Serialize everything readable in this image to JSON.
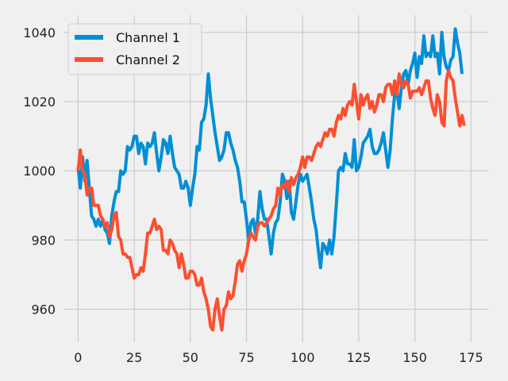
{
  "chart_data": {
    "type": "line",
    "title": "",
    "xlabel": "",
    "ylabel": "",
    "xlim": [
      -6.5,
      183
    ],
    "ylim": [
      950.5,
      1045
    ],
    "xticks": [
      0,
      25,
      50,
      75,
      100,
      125,
      150,
      175
    ],
    "yticks": [
      960,
      980,
      1000,
      1020,
      1040
    ],
    "grid": true,
    "legend": "top-left",
    "series": [
      {
        "name": "Channel 1",
        "color": "#008fd5",
        "x_start": 0,
        "y": [
          1001,
          995,
          1004,
          997,
          1003,
          995,
          987,
          986,
          984,
          986,
          984,
          986,
          983,
          982,
          979,
          987,
          991,
          994,
          994,
          1000,
          999,
          1000,
          1007,
          1006,
          1007,
          1010,
          1010,
          1005,
          1008,
          1007,
          1002,
          1008,
          1007,
          1008,
          1011,
          1005,
          1000,
          1004,
          1009,
          1008,
          1005,
          1010,
          1005,
          1001,
          1000,
          999,
          995,
          995,
          997,
          995,
          990,
          995,
          999,
          1007,
          1006,
          1014,
          1015,
          1019,
          1028,
          1021,
          1016,
          1011,
          1007,
          1003,
          1004,
          1006,
          1011,
          1011,
          1008,
          1006,
          1003,
          1001,
          997,
          991,
          991,
          986,
          980,
          985,
          986,
          982,
          986,
          994,
          989,
          986,
          986,
          981,
          976,
          982,
          985,
          986,
          991,
          999,
          997,
          992,
          997,
          988,
          986,
          991,
          996,
          999,
          997,
          998,
          999,
          995,
          991,
          986,
          983,
          977,
          972,
          979,
          978,
          976,
          980,
          976,
          981,
          990,
          1000,
          1001,
          1000,
          1005,
          1002,
          1002,
          1001,
          1009,
          1000,
          1001,
          1004,
          1008,
          1009,
          1010,
          1012,
          1007,
          1005,
          1005,
          1006,
          1008,
          1011,
          1006,
          1001,
          1006,
          1015,
          1022,
          1023,
          1018,
          1024,
          1028,
          1029,
          1025,
          1029,
          1031,
          1034,
          1027,
          1033,
          1031,
          1039,
          1033,
          1034,
          1033,
          1039,
          1033,
          1034,
          1028,
          1040,
          1033,
          1030,
          1029,
          1032,
          1033,
          1041,
          1037,
          1034,
          1028
        ]
      },
      {
        "name": "Channel 2",
        "color": "#fc4f30",
        "x_start": 0,
        "y": [
          1000,
          1006,
          1000,
          999,
          993,
          995,
          995,
          990,
          990,
          990,
          987,
          986,
          984,
          985,
          981,
          983,
          987,
          988,
          981,
          980,
          976,
          976,
          975,
          975,
          972,
          969,
          970,
          970,
          972,
          971,
          976,
          982,
          982,
          984,
          986,
          983,
          984,
          983,
          977,
          977,
          976,
          980,
          979,
          977,
          976,
          972,
          976,
          973,
          969,
          969,
          971,
          971,
          970,
          967,
          967,
          969,
          965,
          963,
          960,
          955,
          954,
          960,
          963,
          958,
          954,
          960,
          961,
          965,
          963,
          964,
          968,
          973,
          974,
          971,
          974,
          976,
          980,
          982,
          981,
          980,
          984,
          985,
          985,
          984,
          985,
          986,
          987,
          989,
          990,
          995,
          993,
          996,
          995,
          997,
          994,
          998,
          996,
          998,
          999,
          1001,
          1004,
          1001,
          1004,
          1004,
          1003,
          1005,
          1007,
          1008,
          1007,
          1009,
          1011,
          1010,
          1012,
          1012,
          1010,
          1014,
          1016,
          1015,
          1018,
          1016,
          1019,
          1020,
          1019,
          1025,
          1020,
          1015,
          1022,
          1019,
          1021,
          1022,
          1018,
          1020,
          1017,
          1019,
          1022,
          1022,
          1020,
          1024,
          1025,
          1025,
          1022,
          1026,
          1022,
          1028,
          1025,
          1024,
          1026,
          1025,
          1021,
          1023,
          1023,
          1023,
          1024,
          1022,
          1024,
          1026,
          1026,
          1021,
          1018,
          1016,
          1022,
          1020,
          1014,
          1013,
          1026,
          1029,
          1027,
          1026,
          1021,
          1017,
          1013,
          1016,
          1013
        ]
      }
    ]
  }
}
